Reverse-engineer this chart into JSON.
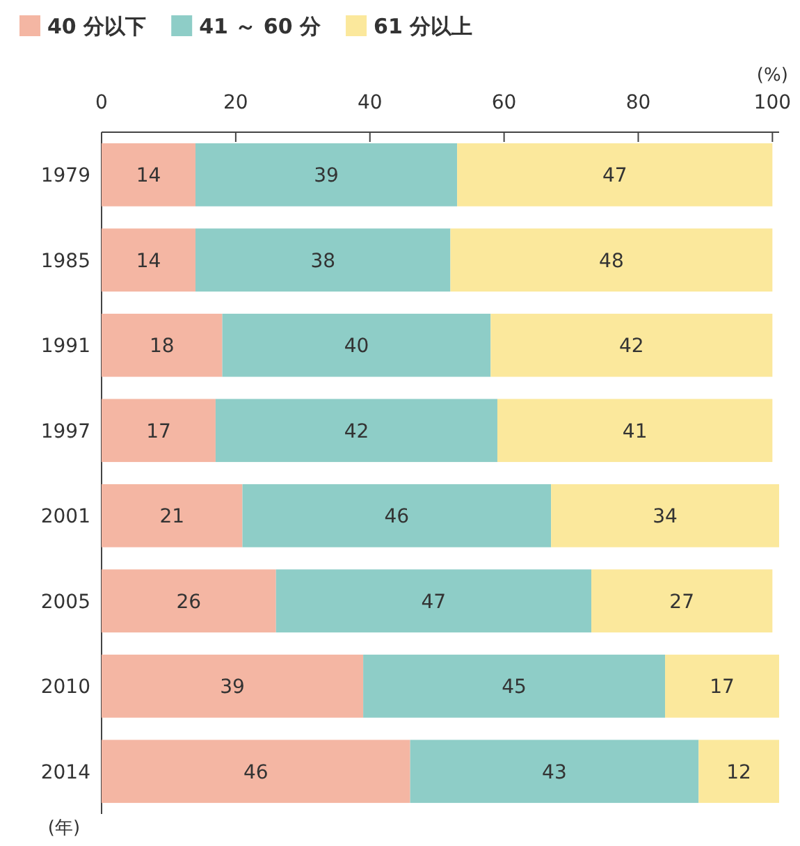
{
  "chart_data": {
    "type": "bar",
    "orientation": "horizontal",
    "stacked": true,
    "data_labels": true,
    "legend": "top left",
    "categories": [
      "1979",
      "1985",
      "1991",
      "1997",
      "2001",
      "2005",
      "2010",
      "2014"
    ],
    "series": [
      {
        "name": "40 分以下",
        "color": "#f4b6a3",
        "values": [
          14,
          14,
          18,
          17,
          21,
          26,
          39,
          46
        ]
      },
      {
        "name": "41 ～ 60 分",
        "color": "#8ecdc7",
        "values": [
          39,
          38,
          40,
          42,
          46,
          47,
          45,
          43
        ]
      },
      {
        "name": "61 分以上",
        "color": "#fbe89c",
        "values": [
          47,
          48,
          42,
          41,
          34,
          27,
          17,
          12
        ]
      }
    ],
    "xlim": [
      0,
      101
    ],
    "xticks": [
      0,
      20,
      40,
      60,
      80,
      100
    ],
    "xlabel": "(%)",
    "ylabel": "(年)"
  }
}
